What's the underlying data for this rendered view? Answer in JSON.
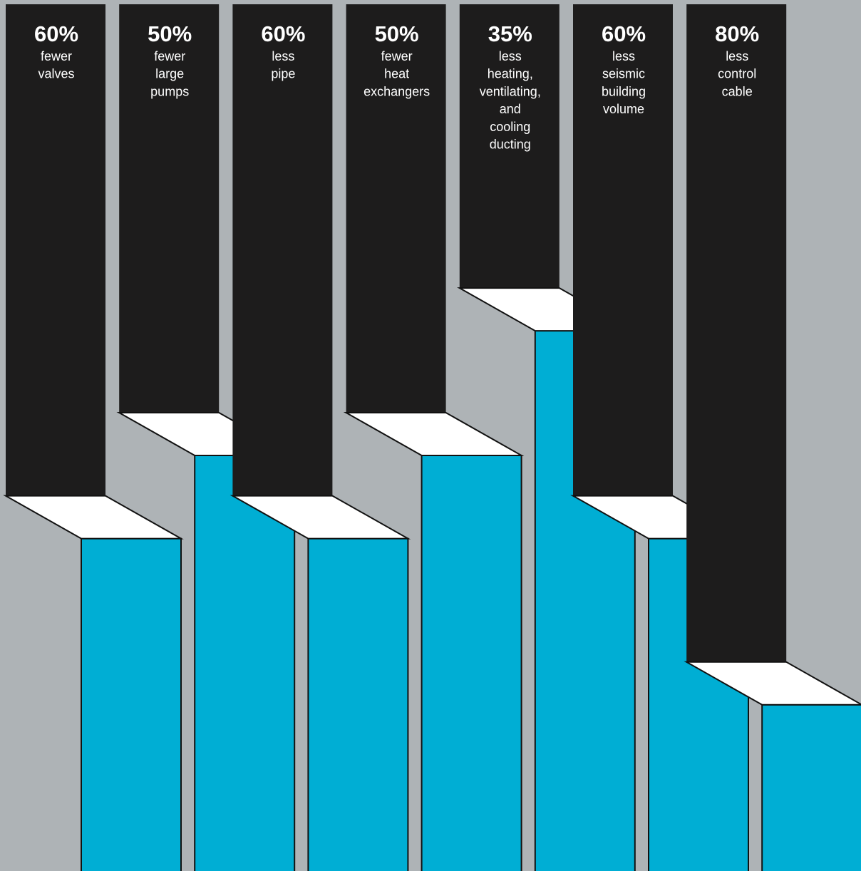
{
  "chart_data": {
    "type": "bar",
    "title": "",
    "xlabel": "",
    "ylabel": "",
    "ylim": [
      0,
      100
    ],
    "unit": "%",
    "categories": [
      [
        "fewer",
        "valves"
      ],
      [
        "fewer",
        "large",
        "pumps"
      ],
      [
        "less",
        "pipe"
      ],
      [
        "fewer",
        "heat",
        "exchangers"
      ],
      [
        "less",
        "heating,",
        "ventilating,",
        "and",
        "cooling",
        "ducting"
      ],
      [
        "less",
        "seismic",
        "building",
        "volume"
      ],
      [
        "less",
        "control",
        "cable"
      ]
    ],
    "labels": [
      "60%",
      "50%",
      "60%",
      "50%",
      "35%",
      "60%",
      "80%"
    ],
    "values": [
      60,
      50,
      60,
      50,
      35,
      60,
      80
    ],
    "colors": {
      "background": "#aeb3b6",
      "reduction_band": "#1d1c1c",
      "remaining_bar": "#00aed4",
      "bar_top": "#ffffff",
      "text": "#ffffff"
    }
  }
}
